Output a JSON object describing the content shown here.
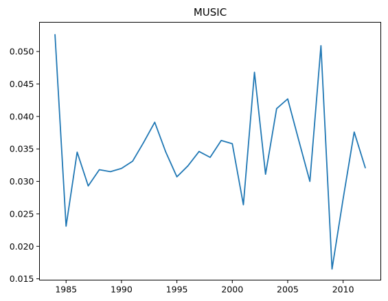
{
  "chart_data": {
    "type": "line",
    "title": "MUSIC",
    "xlabel": "",
    "ylabel": "",
    "xlim": [
      1982.6,
      2013.4
    ],
    "ylim": [
      0.0148,
      0.0545
    ],
    "x_ticks": [
      1985,
      1990,
      1995,
      2000,
      2005,
      2010
    ],
    "y_ticks": [
      0.015,
      0.02,
      0.025,
      0.03,
      0.035,
      0.04,
      0.045,
      0.05
    ],
    "y_tick_labels": [
      "0.015",
      "0.020",
      "0.025",
      "0.030",
      "0.035",
      "0.040",
      "0.045",
      "0.050"
    ],
    "grid": false,
    "legend": "none",
    "color": "#1f77b4",
    "x": [
      1984,
      1985,
      1986,
      1987,
      1988,
      1989,
      1990,
      1991,
      1992,
      1993,
      1994,
      1995,
      1996,
      1997,
      1998,
      1999,
      2000,
      2001,
      2002,
      2003,
      2004,
      2005,
      2006,
      2007,
      2008,
      2009,
      2010,
      2011,
      2012
    ],
    "y": [
      0.0526,
      0.0231,
      0.0345,
      0.0293,
      0.0318,
      0.0315,
      0.032,
      0.0331,
      0.036,
      0.0391,
      0.0345,
      0.0307,
      0.0324,
      0.0346,
      0.0337,
      0.0363,
      0.0358,
      0.0264,
      0.0468,
      0.0311,
      0.0412,
      0.0427,
      0.0363,
      0.03,
      0.0509,
      0.0165,
      0.0273,
      0.0376,
      0.0321
    ]
  }
}
